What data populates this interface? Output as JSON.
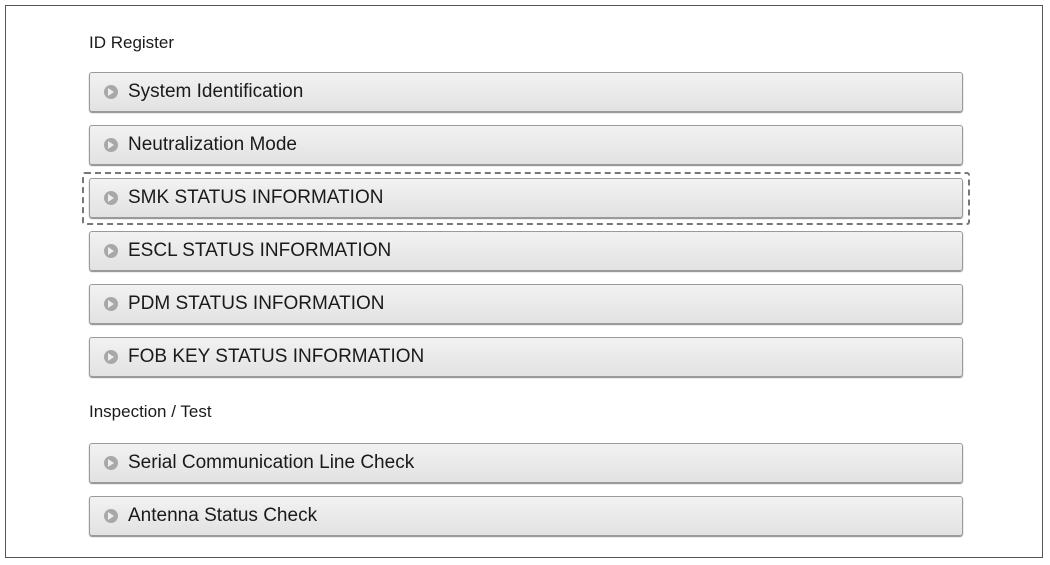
{
  "sections": [
    {
      "title": "ID Register",
      "items": [
        {
          "label": "System Identification",
          "icon": "arrow-right-circle-icon"
        },
        {
          "label": "Neutralization Mode",
          "icon": "arrow-right-circle-icon"
        },
        {
          "label": "SMK STATUS INFORMATION",
          "icon": "arrow-right-circle-icon",
          "highlighted": true
        },
        {
          "label": "ESCL STATUS INFORMATION",
          "icon": "arrow-right-circle-icon"
        },
        {
          "label": "PDM STATUS INFORMATION",
          "icon": "arrow-right-circle-icon"
        },
        {
          "label": "FOB KEY STATUS INFORMATION",
          "icon": "arrow-right-circle-icon"
        }
      ]
    },
    {
      "title": "Inspection / Test",
      "items": [
        {
          "label": "Serial Communication Line Check",
          "icon": "arrow-right-circle-icon"
        },
        {
          "label": "Antenna Status Check",
          "icon": "arrow-right-circle-icon"
        }
      ]
    }
  ]
}
